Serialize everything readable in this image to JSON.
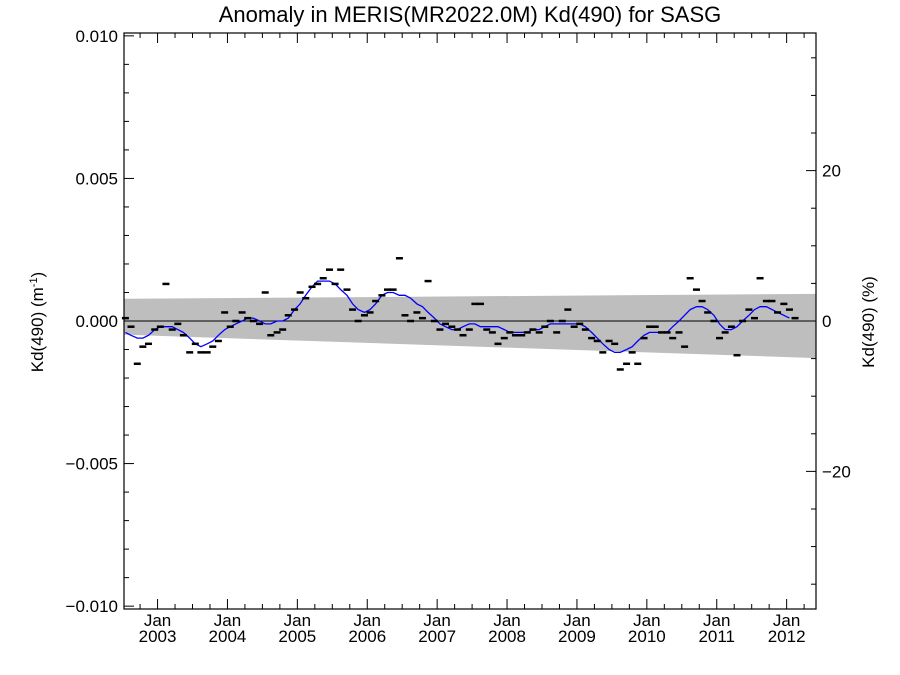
{
  "chart_data": {
    "type": "scatter",
    "title": "Anomaly in MERIS(MR2022.0M) Kd(490) for SASG",
    "ylabel": "Kd(490) (m",
    "ylabel_sup": "-1",
    "ylabel_close": ")",
    "y2label": "Kd(490) (%)",
    "xlim": [
      2002.52,
      2012.42
    ],
    "ylim": [
      -0.0101,
      0.0101
    ],
    "y2lim": [
      -38.3,
      38.3
    ],
    "y_ticks": [
      -0.01,
      -0.005,
      0.0,
      0.005,
      0.01
    ],
    "y_tick_labels": [
      "−0.010",
      "−0.005",
      "0.000",
      "0.005",
      "0.010"
    ],
    "y2_ticks": [
      -20,
      0,
      20
    ],
    "y2_tick_labels": [
      "−20",
      "0",
      "20"
    ],
    "x_ticks": [
      2003.0,
      2004.0,
      2005.0,
      2006.0,
      2007.0,
      2008.0,
      2009.0,
      2010.0,
      2011.0,
      2012.0
    ],
    "x_tick_labels_top": [
      "Jan",
      "Jan",
      "Jan",
      "Jan",
      "Jan",
      "Jan",
      "Jan",
      "Jan",
      "Jan",
      "Jan"
    ],
    "x_tick_labels_bottom": [
      "2003",
      "2004",
      "2005",
      "2006",
      "2007",
      "2008",
      "2009",
      "2010",
      "2011",
      "2012"
    ],
    "zero_line": 0.0,
    "band": {
      "name": "",
      "color": "#bebebe",
      "upper": [
        [
          2002.52,
          0.00078
        ],
        [
          2012.42,
          0.00095
        ]
      ],
      "lower": [
        [
          2002.52,
          -0.00048
        ],
        [
          2012.42,
          -0.0013
        ]
      ]
    },
    "series": [
      {
        "name": "",
        "kind": "monthly-anomaly",
        "color": "#000000",
        "points": [
          [
            2002.54,
            0.0001
          ],
          [
            2002.62,
            -0.0002
          ],
          [
            2002.71,
            -0.0015
          ],
          [
            2002.79,
            -0.0009
          ],
          [
            2002.87,
            -0.0008
          ],
          [
            2002.96,
            -0.0003
          ],
          [
            2003.04,
            -0.0002
          ],
          [
            2003.12,
            0.0013
          ],
          [
            2003.21,
            -0.0003
          ],
          [
            2003.29,
            -0.0001
          ],
          [
            2003.37,
            -0.0005
          ],
          [
            2003.46,
            -0.0011
          ],
          [
            2003.54,
            -0.0008
          ],
          [
            2003.62,
            -0.0011
          ],
          [
            2003.71,
            -0.0011
          ],
          [
            2003.79,
            -0.0009
          ],
          [
            2003.87,
            -0.0007
          ],
          [
            2003.96,
            0.0003
          ],
          [
            2004.04,
            -0.0002
          ],
          [
            2004.12,
            0.0
          ],
          [
            2004.21,
            0.0003
          ],
          [
            2004.29,
            0.0001
          ],
          [
            2004.37,
            0.0
          ],
          [
            2004.46,
            -0.0001
          ],
          [
            2004.54,
            0.001
          ],
          [
            2004.62,
            -0.0005
          ],
          [
            2004.71,
            -0.0004
          ],
          [
            2004.79,
            -0.0003
          ],
          [
            2004.87,
            0.0002
          ],
          [
            2004.96,
            0.0004
          ],
          [
            2005.04,
            0.001
          ],
          [
            2005.12,
            0.0008
          ],
          [
            2005.21,
            0.0012
          ],
          [
            2005.29,
            0.0013
          ],
          [
            2005.37,
            0.0015
          ],
          [
            2005.46,
            0.0018
          ],
          [
            2005.54,
            0.0013
          ],
          [
            2005.62,
            0.0018
          ],
          [
            2005.71,
            0.0011
          ],
          [
            2005.79,
            0.0004
          ],
          [
            2005.87,
            0.0
          ],
          [
            2005.96,
            0.0002
          ],
          [
            2006.04,
            0.0003
          ],
          [
            2006.12,
            0.0007
          ],
          [
            2006.21,
            0.0009
          ],
          [
            2006.29,
            0.0011
          ],
          [
            2006.37,
            0.0011
          ],
          [
            2006.46,
            0.0022
          ],
          [
            2006.54,
            0.0002
          ],
          [
            2006.62,
            0.0
          ],
          [
            2006.71,
            0.0003
          ],
          [
            2006.79,
            0.0001
          ],
          [
            2006.87,
            0.0014
          ],
          [
            2006.96,
            0.0
          ],
          [
            2007.04,
            -0.0003
          ],
          [
            2007.12,
            -0.0001
          ],
          [
            2007.21,
            -0.0002
          ],
          [
            2007.29,
            -0.0003
          ],
          [
            2007.37,
            -0.0005
          ],
          [
            2007.46,
            -0.0003
          ],
          [
            2007.54,
            0.0006
          ],
          [
            2007.62,
            0.0006
          ],
          [
            2007.71,
            -0.0003
          ],
          [
            2007.79,
            -0.0004
          ],
          [
            2007.87,
            -0.0008
          ],
          [
            2007.96,
            -0.0006
          ],
          [
            2008.04,
            -0.0004
          ],
          [
            2008.12,
            -0.0005
          ],
          [
            2008.21,
            -0.0005
          ],
          [
            2008.29,
            -0.0004
          ],
          [
            2008.37,
            -0.0003
          ],
          [
            2008.46,
            -0.0004
          ],
          [
            2008.54,
            -0.0002
          ],
          [
            2008.62,
            0.0
          ],
          [
            2008.71,
            -0.0004
          ],
          [
            2008.79,
            0.0
          ],
          [
            2008.87,
            0.0004
          ],
          [
            2008.96,
            -0.0002
          ],
          [
            2009.04,
            -0.0001
          ],
          [
            2009.12,
            -0.0003
          ],
          [
            2009.21,
            -0.0006
          ],
          [
            2009.29,
            -0.0007
          ],
          [
            2009.37,
            -0.0011
          ],
          [
            2009.46,
            -0.0007
          ],
          [
            2009.54,
            -0.0008
          ],
          [
            2009.62,
            -0.0017
          ],
          [
            2009.71,
            -0.0015
          ],
          [
            2009.79,
            -0.0011
          ],
          [
            2009.87,
            -0.0015
          ],
          [
            2009.96,
            -0.0006
          ],
          [
            2010.04,
            -0.0002
          ],
          [
            2010.12,
            -0.0002
          ],
          [
            2010.21,
            -0.0004
          ],
          [
            2010.29,
            -0.0004
          ],
          [
            2010.37,
            -0.0006
          ],
          [
            2010.46,
            -0.0004
          ],
          [
            2010.54,
            -0.0009
          ],
          [
            2010.62,
            0.0015
          ],
          [
            2010.71,
            0.0011
          ],
          [
            2010.79,
            0.0007
          ],
          [
            2010.87,
            0.0003
          ],
          [
            2010.96,
            0.0
          ],
          [
            2011.04,
            -0.0006
          ],
          [
            2011.12,
            -0.0004
          ],
          [
            2011.21,
            -0.0002
          ],
          [
            2011.29,
            -0.0012
          ],
          [
            2011.37,
            0.0
          ],
          [
            2011.46,
            0.0004
          ],
          [
            2011.54,
            0.0001
          ],
          [
            2011.62,
            0.0015
          ],
          [
            2011.71,
            0.0007
          ],
          [
            2011.79,
            0.0007
          ],
          [
            2011.87,
            0.0003
          ],
          [
            2011.96,
            0.0006
          ],
          [
            2012.04,
            0.0004
          ],
          [
            2012.12,
            0.0001
          ]
        ]
      },
      {
        "name": "",
        "kind": "smoothed",
        "color": "#0000ff",
        "points": [
          [
            2002.54,
            -0.0004
          ],
          [
            2002.62,
            -0.0005
          ],
          [
            2002.71,
            -0.0006
          ],
          [
            2002.79,
            -0.0006
          ],
          [
            2002.87,
            -0.0005
          ],
          [
            2002.96,
            -0.0003
          ],
          [
            2003.04,
            -0.0002
          ],
          [
            2003.12,
            -0.0002
          ],
          [
            2003.21,
            -0.0002
          ],
          [
            2003.29,
            -0.0003
          ],
          [
            2003.37,
            -0.0004
          ],
          [
            2003.46,
            -0.0006
          ],
          [
            2003.54,
            -0.0008
          ],
          [
            2003.62,
            -0.0009
          ],
          [
            2003.71,
            -0.0008
          ],
          [
            2003.79,
            -0.0007
          ],
          [
            2003.87,
            -0.0005
          ],
          [
            2003.96,
            -0.0003
          ],
          [
            2004.04,
            -0.0002
          ],
          [
            2004.12,
            -0.0001
          ],
          [
            2004.21,
            0.0
          ],
          [
            2004.29,
            0.0001
          ],
          [
            2004.37,
            0.0001
          ],
          [
            2004.46,
            0.0
          ],
          [
            2004.54,
            -0.0001
          ],
          [
            2004.62,
            -0.0001
          ],
          [
            2004.71,
            0.0
          ],
          [
            2004.79,
            0.0
          ],
          [
            2004.87,
            0.0001
          ],
          [
            2004.96,
            0.0004
          ],
          [
            2005.04,
            0.0006
          ],
          [
            2005.12,
            0.0009
          ],
          [
            2005.21,
            0.0012
          ],
          [
            2005.29,
            0.0014
          ],
          [
            2005.37,
            0.0014
          ],
          [
            2005.46,
            0.0014
          ],
          [
            2005.54,
            0.0013
          ],
          [
            2005.62,
            0.0011
          ],
          [
            2005.71,
            0.0009
          ],
          [
            2005.79,
            0.0006
          ],
          [
            2005.87,
            0.0004
          ],
          [
            2005.96,
            0.0003
          ],
          [
            2006.04,
            0.0004
          ],
          [
            2006.12,
            0.0006
          ],
          [
            2006.21,
            0.0009
          ],
          [
            2006.29,
            0.001
          ],
          [
            2006.37,
            0.001
          ],
          [
            2006.46,
            0.0009
          ],
          [
            2006.54,
            0.0009
          ],
          [
            2006.62,
            0.0008
          ],
          [
            2006.71,
            0.0006
          ],
          [
            2006.79,
            0.0005
          ],
          [
            2006.87,
            0.0003
          ],
          [
            2006.96,
            0.0001
          ],
          [
            2007.04,
            -0.0001
          ],
          [
            2007.12,
            -0.0002
          ],
          [
            2007.21,
            -0.0003
          ],
          [
            2007.29,
            -0.0003
          ],
          [
            2007.37,
            -0.0002
          ],
          [
            2007.46,
            -0.0001
          ],
          [
            2007.54,
            -0.0001
          ],
          [
            2007.62,
            -0.0002
          ],
          [
            2007.71,
            -0.0002
          ],
          [
            2007.79,
            -0.0002
          ],
          [
            2007.87,
            -0.0002
          ],
          [
            2007.96,
            -0.0003
          ],
          [
            2008.04,
            -0.0004
          ],
          [
            2008.12,
            -0.0004
          ],
          [
            2008.21,
            -0.0004
          ],
          [
            2008.29,
            -0.0004
          ],
          [
            2008.37,
            -0.0003
          ],
          [
            2008.46,
            -0.0003
          ],
          [
            2008.54,
            -0.0002
          ],
          [
            2008.62,
            -0.0001
          ],
          [
            2008.71,
            -0.0001
          ],
          [
            2008.79,
            -0.0001
          ],
          [
            2008.87,
            -0.0001
          ],
          [
            2008.96,
            -0.0001
          ],
          [
            2009.04,
            -0.0001
          ],
          [
            2009.12,
            -0.0002
          ],
          [
            2009.21,
            -0.0004
          ],
          [
            2009.29,
            -0.0006
          ],
          [
            2009.37,
            -0.0008
          ],
          [
            2009.46,
            -0.001
          ],
          [
            2009.54,
            -0.0011
          ],
          [
            2009.62,
            -0.0011
          ],
          [
            2009.71,
            -0.001
          ],
          [
            2009.79,
            -0.0009
          ],
          [
            2009.87,
            -0.0007
          ],
          [
            2009.96,
            -0.0005
          ],
          [
            2010.04,
            -0.0004
          ],
          [
            2010.12,
            -0.0004
          ],
          [
            2010.21,
            -0.0004
          ],
          [
            2010.29,
            -0.0004
          ],
          [
            2010.37,
            -0.0002
          ],
          [
            2010.46,
            0.0
          ],
          [
            2010.54,
            0.0002
          ],
          [
            2010.62,
            0.0004
          ],
          [
            2010.71,
            0.0005
          ],
          [
            2010.79,
            0.0005
          ],
          [
            2010.87,
            0.0004
          ],
          [
            2010.96,
            0.0002
          ],
          [
            2011.04,
            -0.0001
          ],
          [
            2011.12,
            -0.0003
          ],
          [
            2011.21,
            -0.0003
          ],
          [
            2011.29,
            -0.0002
          ],
          [
            2011.37,
            0.0
          ],
          [
            2011.46,
            0.0002
          ],
          [
            2011.54,
            0.0004
          ],
          [
            2011.62,
            0.0005
          ],
          [
            2011.71,
            0.0005
          ],
          [
            2011.79,
            0.0004
          ],
          [
            2011.87,
            0.0003
          ],
          [
            2011.96,
            0.0002
          ],
          [
            2012.04,
            0.0001
          ]
        ]
      }
    ]
  }
}
